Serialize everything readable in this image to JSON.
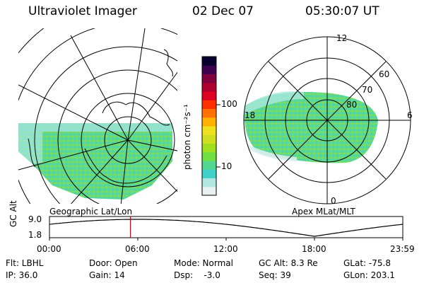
{
  "header": {
    "title": "Ultraviolet Imager",
    "date": "02 Dec 07",
    "time": "05:30:07 UT"
  },
  "geo_panel": {
    "label": "Geographic Lat/Lon"
  },
  "apex_panel": {
    "label": "Apex MLat/MLT",
    "mlt_labels": [
      "12",
      "18",
      "6",
      "0"
    ],
    "lat_labels": [
      "60",
      "70",
      "80"
    ]
  },
  "colorbar": {
    "unit": "photon cm⁻²s⁻¹",
    "ticks": [
      "100",
      "10"
    ],
    "colors": [
      "#e8f0f0",
      "#b0e6e0",
      "#40d2c8",
      "#50d890",
      "#70e040",
      "#a0e020",
      "#d0e020",
      "#f0e020",
      "#ffb000",
      "#ff7000",
      "#ff3000",
      "#e00020",
      "#b00030",
      "#800040",
      "#400050",
      "#0a0030"
    ]
  },
  "timeline": {
    "axis_label": "GC Alt",
    "ymax": "9.0",
    "ymin": "1.8",
    "ticks": [
      "00:00",
      "06:00",
      "12:00",
      "18:00",
      "23:59"
    ],
    "marker_hour": 5.5,
    "marker_color": "#e00000"
  },
  "info": {
    "flt": "Flt: LBHL",
    "ip": "IP: 36.0",
    "door": "Door: Open",
    "gain": "Gain: 14",
    "mode": "Mode: Normal",
    "dsp": "Dsp:    -3.0",
    "gcalt": "GC Alt: 8.3 Re",
    "seq": "Seq: 39",
    "glat": "GLat: -75.8",
    "glon": "GLon: 203.1"
  }
}
